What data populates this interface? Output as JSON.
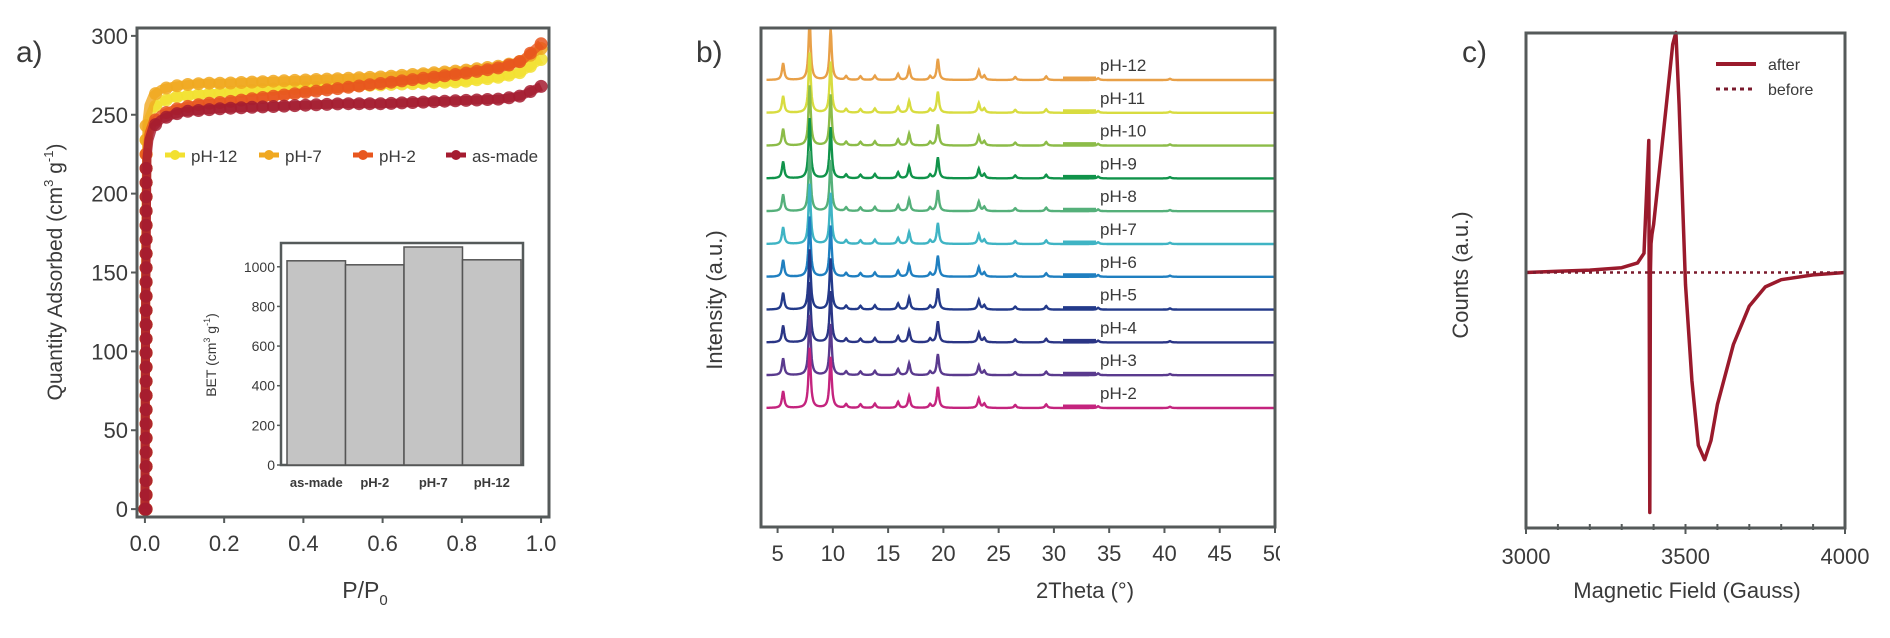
{
  "chart_data": [
    {
      "panel_label": "a)",
      "type": "scatter",
      "title": "",
      "xlabel": "P/P0",
      "xlabel_main": "P/P",
      "xlabel_sub": "0",
      "ylabel": "Quantity Adsorbed (cm3 g-1)",
      "ylabel_parts": [
        "Quantity Adsorbed (cm",
        "3",
        " g",
        "-1",
        ")"
      ],
      "xlim": [
        -0.02,
        1.02
      ],
      "ylim": [
        -5,
        305
      ],
      "xticks": [
        0.0,
        0.2,
        0.4,
        0.6,
        0.8,
        1.0
      ],
      "xtick_labels": [
        "0.0",
        "0.2",
        "0.4",
        "0.6",
        "0.8",
        "1.0"
      ],
      "yticks": [
        0,
        50,
        100,
        150,
        200,
        250,
        300
      ],
      "ytick_labels": [
        "0",
        "50",
        "100",
        "150",
        "200",
        "250",
        "300"
      ],
      "legend_position": "upper-middle, horizontal",
      "series": [
        {
          "name": "pH-12",
          "color": "#f2e030",
          "x": [
            0.0,
            0.002,
            0.005,
            0.01,
            0.02,
            0.04,
            0.07,
            0.1,
            0.15,
            0.2,
            0.3,
            0.4,
            0.5,
            0.6,
            0.7,
            0.8,
            0.9,
            0.95,
            1.0
          ],
          "y": [
            0,
            150,
            235,
            248,
            254,
            258,
            261,
            262,
            263,
            264,
            266,
            267,
            268,
            269,
            270,
            271,
            274,
            277,
            285
          ]
        },
        {
          "name": "pH-7",
          "color": "#f0a820",
          "x": [
            0.0,
            0.002,
            0.005,
            0.01,
            0.02,
            0.04,
            0.07,
            0.1,
            0.15,
            0.2,
            0.3,
            0.4,
            0.5,
            0.6,
            0.7,
            0.8,
            0.9,
            0.95,
            1.0
          ],
          "y": [
            0,
            170,
            245,
            256,
            262,
            266,
            268,
            269,
            270,
            270,
            271,
            272,
            273,
            274,
            276,
            278,
            281,
            284,
            292
          ]
        },
        {
          "name": "pH-2",
          "color": "#e8561e",
          "x": [
            0.0,
            0.002,
            0.005,
            0.01,
            0.02,
            0.04,
            0.07,
            0.1,
            0.15,
            0.2,
            0.3,
            0.4,
            0.5,
            0.6,
            0.7,
            0.8,
            0.9,
            0.95,
            1.0
          ],
          "y": [
            0,
            140,
            225,
            238,
            245,
            250,
            253,
            255,
            257,
            258,
            261,
            264,
            267,
            270,
            273,
            276,
            280,
            284,
            295
          ]
        },
        {
          "name": "as-made",
          "color": "#a51c30",
          "x": [
            0.0,
            0.002,
            0.005,
            0.01,
            0.02,
            0.04,
            0.07,
            0.1,
            0.15,
            0.2,
            0.3,
            0.4,
            0.5,
            0.6,
            0.7,
            0.8,
            0.9,
            0.95,
            1.0
          ],
          "y": [
            0,
            135,
            222,
            234,
            242,
            247,
            250,
            252,
            253,
            254,
            255,
            256,
            257,
            257,
            258,
            259,
            260,
            262,
            268
          ]
        }
      ],
      "inset": {
        "type": "bar",
        "ylabel": "BET (cm3 g-1)",
        "ylabel_parts": [
          "BET (cm",
          "3",
          " g",
          "-1",
          ")"
        ],
        "categories": [
          "as-made",
          "pH-2",
          "pH-7",
          "pH-12"
        ],
        "values": [
          1030,
          1010,
          1100,
          1035
        ],
        "ylim": [
          0,
          1120
        ],
        "yticks": [
          0,
          200,
          400,
          600,
          800,
          1000
        ],
        "ytick_labels": [
          "0",
          "200",
          "400",
          "600",
          "800",
          "1000"
        ],
        "bar_color": "#c4c4c4"
      }
    },
    {
      "panel_label": "b)",
      "type": "line",
      "title": "",
      "xlabel": "2Theta (°)",
      "ylabel": "Intensity (a.u.)",
      "xlim": [
        3.5,
        50
      ],
      "xticks": [
        5,
        10,
        15,
        20,
        25,
        30,
        35,
        40,
        45,
        50
      ],
      "xtick_labels": [
        "5",
        "10",
        "15",
        "20",
        "25",
        "30",
        "35",
        "40",
        "45",
        "50"
      ],
      "legend_position": "right, stacked",
      "peaks_2theta": [
        5.5,
        7.9,
        9.8,
        11.2,
        12.5,
        13.8,
        15.9,
        16.9,
        18.8,
        19.5,
        23.2,
        23.7,
        26.5,
        29.3,
        34.0,
        40.5
      ],
      "peak_relative_intensity": [
        0.28,
        1.0,
        0.85,
        0.06,
        0.06,
        0.07,
        0.1,
        0.2,
        0.06,
        0.35,
        0.16,
        0.07,
        0.05,
        0.06,
        0.03,
        0.02
      ],
      "series": [
        {
          "name": "pH-12",
          "color": "#e8a048"
        },
        {
          "name": "pH-11",
          "color": "#d8dc40"
        },
        {
          "name": "pH-10",
          "color": "#8cbc48"
        },
        {
          "name": "pH-9",
          "color": "#10934a"
        },
        {
          "name": "pH-8",
          "color": "#55b07a"
        },
        {
          "name": "pH-7",
          "color": "#3fb4c4"
        },
        {
          "name": "pH-6",
          "color": "#1f7fc0"
        },
        {
          "name": "pH-5",
          "color": "#233a8a"
        },
        {
          "name": "pH-4",
          "color": "#2a3585"
        },
        {
          "name": "pH-3",
          "color": "#5a3a8e"
        },
        {
          "name": "pH-2",
          "color": "#c4247e"
        }
      ]
    },
    {
      "panel_label": "c)",
      "type": "line",
      "title": "",
      "xlabel": "Magnetic Field (Gauss)",
      "ylabel": "Counts (a.u.)",
      "xlim": [
        3000,
        4000
      ],
      "xticks": [
        3000,
        3500,
        4000
      ],
      "xtick_labels": [
        "3000",
        "3500",
        "4000"
      ],
      "minor_xtick_step": 100,
      "ylim": [
        -1.0,
        1.0
      ],
      "legend_position": "top-right",
      "series": [
        {
          "name": "after",
          "style": "solid",
          "color": "#9a1a2c",
          "x": [
            3000,
            3100,
            3200,
            3300,
            3350,
            3370,
            3385,
            3388,
            3390,
            3392,
            3395,
            3400,
            3420,
            3440,
            3460,
            3470,
            3480,
            3500,
            3520,
            3540,
            3560,
            3580,
            3600,
            3650,
            3700,
            3750,
            3800,
            3900,
            4000
          ],
          "y": [
            0.0,
            0.005,
            0.01,
            0.02,
            0.04,
            0.08,
            0.55,
            -1.0,
            0.0,
            0.12,
            0.16,
            0.2,
            0.45,
            0.7,
            0.95,
            1.0,
            0.7,
            -0.05,
            -0.45,
            -0.72,
            -0.78,
            -0.7,
            -0.55,
            -0.3,
            -0.14,
            -0.06,
            -0.03,
            -0.01,
            0.0
          ]
        },
        {
          "name": "before",
          "style": "dotted",
          "color": "#7a1a2c",
          "x": [
            3000,
            4000
          ],
          "y": [
            0.0,
            0.0
          ]
        }
      ]
    }
  ]
}
